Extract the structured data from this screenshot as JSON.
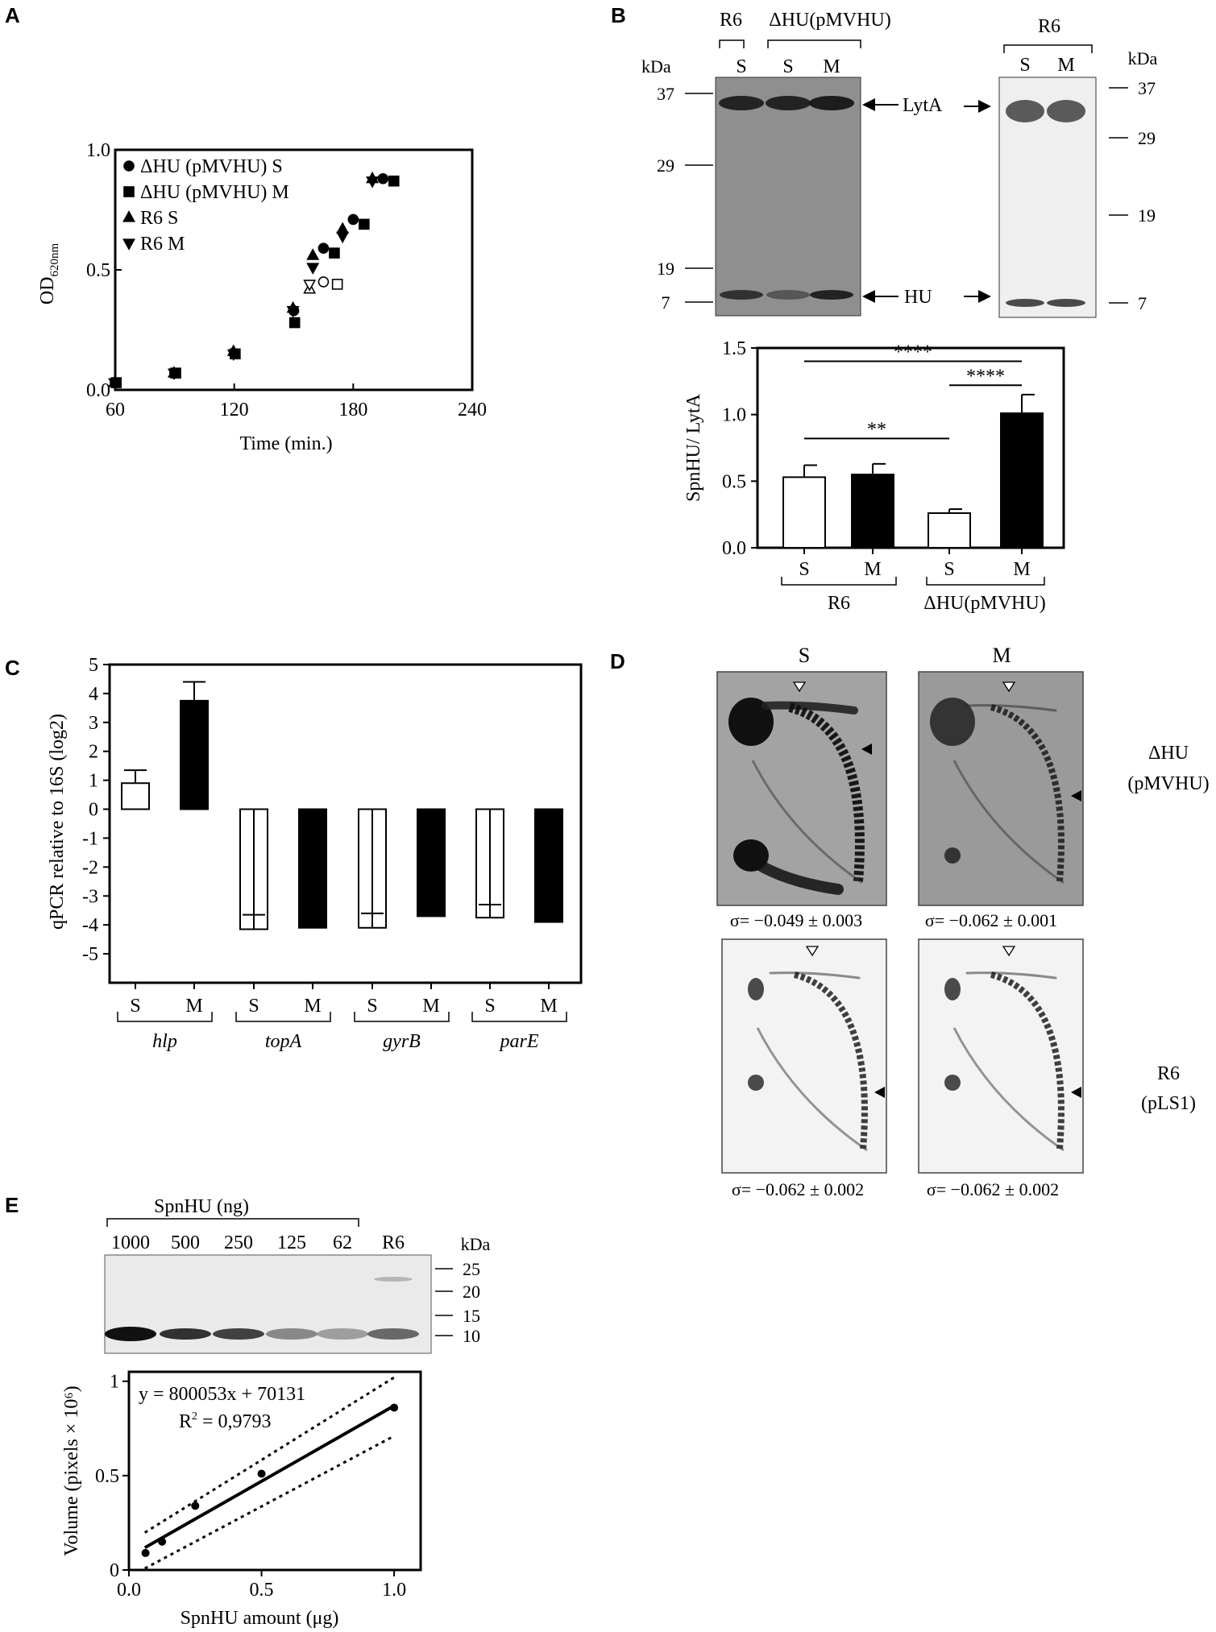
{
  "panels": {
    "A": {
      "letter": "A",
      "chart_data": {
        "type": "scatter",
        "xlabel": "Time (min.)",
        "ylabel_main": "OD",
        "ylabel_sub": "620nm",
        "xlim": [
          60,
          240
        ],
        "ylim": [
          0,
          1
        ],
        "xticks": [
          "60",
          "120",
          "180",
          "240"
        ],
        "yticks": [
          "0.0",
          "0.5",
          "1.0"
        ],
        "legend": [
          "ΔHU (pMVHU) S",
          "ΔHU (pMVHU) M",
          "R6 S",
          "R6 M"
        ],
        "series": [
          {
            "name": "ΔHU (pMVHU) S",
            "marker": "circle",
            "x": [
              60,
              90,
              120,
              150,
              165,
              180,
              195
            ],
            "y": [
              0.03,
              0.07,
              0.15,
              0.33,
              0.59,
              0.71,
              0.88
            ]
          },
          {
            "name": "ΔHU (pMVHU) M",
            "marker": "square",
            "x": [
              60,
              90,
              120,
              150,
              170,
              185,
              200
            ],
            "y": [
              0.03,
              0.07,
              0.15,
              0.28,
              0.57,
              0.69,
              0.87
            ]
          },
          {
            "name": "R6 S",
            "marker": "triangle-up",
            "x": [
              60,
              90,
              120,
              150,
              160,
              175,
              190
            ],
            "y": [
              0.03,
              0.07,
              0.16,
              0.34,
              0.56,
              0.67,
              0.88
            ]
          },
          {
            "name": "R6 M",
            "marker": "triangle-down",
            "x": [
              60,
              90,
              120,
              150,
              160,
              175,
              190
            ],
            "y": [
              0.03,
              0.07,
              0.15,
              0.33,
              0.51,
              0.64,
              0.87
            ]
          }
        ],
        "open_markers": [
          {
            "marker": "square",
            "x": 172,
            "y": 0.44
          },
          {
            "marker": "circle",
            "x": 165,
            "y": 0.45
          },
          {
            "marker": "triangle-up",
            "x": 158,
            "y": 0.42
          },
          {
            "marker": "triangle-down",
            "x": 158,
            "y": 0.44
          }
        ]
      }
    },
    "B": {
      "letter": "B",
      "blot1": {
        "group_labels": [
          "R6",
          "ΔHU(pMVHU)"
        ],
        "lane_labels": [
          "S",
          "S",
          "M"
        ],
        "kda_label": "kDa",
        "markers": [
          "37",
          "29",
          "19",
          "7"
        ],
        "band_labels": [
          "LytA",
          "HU"
        ],
        "lytA_intensity": [
          0.85,
          0.85,
          0.9
        ],
        "hu_intensity": [
          0.75,
          0.45,
          0.85
        ]
      },
      "blot2": {
        "group_label": "R6",
        "lane_labels": [
          "S",
          "M"
        ],
        "kda_label": "kDa",
        "markers": [
          "37",
          "29",
          "19",
          "7"
        ]
      },
      "chart_data": {
        "type": "bar",
        "ylabel": "SpnHU/ LytA",
        "ylim": [
          0,
          1.5
        ],
        "yticks": [
          "0.0",
          "0.5",
          "1.0",
          "1.5"
        ],
        "categories": [
          "S",
          "M",
          "S",
          "M"
        ],
        "groups": [
          "R6",
          "ΔHU(pMVHU)"
        ],
        "values": [
          0.53,
          0.55,
          0.26,
          1.01
        ],
        "errors": [
          0.09,
          0.08,
          0.03,
          0.14
        ],
        "fill": [
          "open",
          "filled",
          "open",
          "filled"
        ],
        "significance": [
          {
            "label": "****",
            "from": 0,
            "to": 3,
            "y": 1.4
          },
          {
            "label": "****",
            "from": 2,
            "to": 3,
            "y": 1.22
          },
          {
            "label": "**",
            "from": 0,
            "to": 2,
            "y": 0.82
          }
        ]
      }
    },
    "C": {
      "letter": "C",
      "chart_data": {
        "type": "bar",
        "ylabel": "qPCR relative to 16S (log2)",
        "ylim": [
          -6,
          5
        ],
        "yticks": [
          "5",
          "4",
          "3",
          "2",
          "1",
          "0",
          "-1",
          "-2",
          "-3",
          "-4",
          "-5"
        ],
        "categories": [
          "S",
          "M",
          "S",
          "M",
          "S",
          "M",
          "S",
          "M"
        ],
        "genes": [
          "hlp",
          "topA",
          "gyrB",
          "parE"
        ],
        "values": [
          0.9,
          3.75,
          -4.15,
          -4.1,
          -4.1,
          -3.7,
          -3.75,
          -3.9
        ],
        "errors": [
          0.45,
          0.65,
          0.5,
          0.6,
          0.5,
          0.7,
          0.45,
          0.5
        ],
        "fill": [
          "open",
          "filled",
          "open",
          "filled",
          "open",
          "filled",
          "open",
          "filled"
        ]
      }
    },
    "D": {
      "letter": "D",
      "col_labels": [
        "S",
        "M"
      ],
      "row_labels": [
        [
          "ΔHU",
          "(pMVHU)"
        ],
        [
          "R6",
          "(pLS1)"
        ]
      ],
      "sigmas": [
        "σ= −0.049 ± 0.003",
        "σ= −0.062 ± 0.001",
        "σ= −0.062 ± 0.002",
        "σ= −0.062 ± 0.002"
      ]
    },
    "E": {
      "letter": "E",
      "blot": {
        "group_label": "SpnHU (ng)",
        "lanes": [
          "1000",
          "500",
          "250",
          "125",
          "62",
          "R6"
        ],
        "kda_label": "kDa",
        "markers": [
          "25",
          "20",
          "15",
          "10"
        ],
        "intensity": [
          1.0,
          0.85,
          0.78,
          0.45,
          0.35,
          0.6
        ]
      },
      "chart_data": {
        "type": "scatter",
        "xlabel": "SpnHU amount (μg)",
        "ylabel": "Volume (pixels × 10⁶)",
        "xlim": [
          0,
          1.1
        ],
        "ylim": [
          0,
          1.05
        ],
        "xticks": [
          "0.0",
          "0.5",
          "1.0"
        ],
        "yticks": [
          "0",
          "0.5",
          "1"
        ],
        "x": [
          0.0625,
          0.125,
          0.25,
          0.5,
          1.0
        ],
        "y": [
          0.09,
          0.15,
          0.34,
          0.51,
          0.86
        ],
        "equation": "y = 800053x + 70131",
        "r2_label": "R",
        "r2_value": " = 0,9793"
      }
    }
  }
}
